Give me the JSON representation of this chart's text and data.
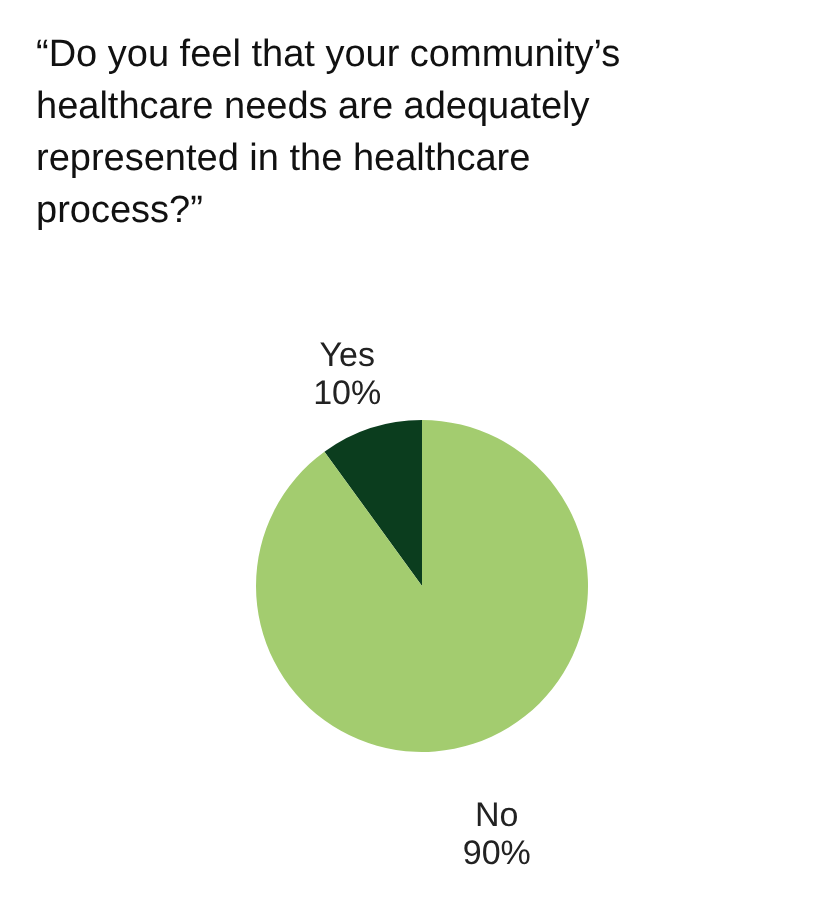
{
  "chart_data": {
    "type": "pie",
    "title": "“Do you feel that your community’s healthcare needs are adequately represented in the healthcare process?”",
    "categories": [
      "Yes",
      "No"
    ],
    "values": [
      10,
      90
    ],
    "colors": [
      "#0b3d1e",
      "#a3cc6f"
    ],
    "value_labels": [
      "10%",
      "90%"
    ],
    "legend": false
  }
}
